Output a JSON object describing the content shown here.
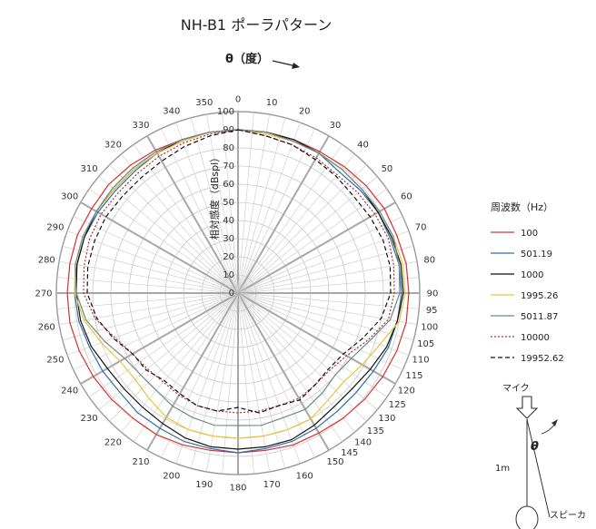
{
  "chart_data": {
    "type": "line",
    "subtype": "polar",
    "title": "NH-B1  ポーラパターン",
    "theta_label": "θ（度）",
    "radial_label": "相対感度（dBspl）",
    "theta_ticks": [
      0,
      10,
      20,
      30,
      40,
      50,
      60,
      70,
      80,
      90,
      95,
      100,
      105,
      110,
      115,
      120,
      125,
      130,
      135,
      140,
      145,
      150,
      160,
      170,
      180,
      190,
      200,
      210,
      220,
      230,
      240,
      250,
      260,
      270,
      280,
      290,
      300,
      310,
      320,
      330,
      340,
      350
    ],
    "r_ticks": [
      0,
      10,
      20,
      30,
      40,
      50,
      60,
      70,
      80,
      90,
      100
    ],
    "rlim": [
      0,
      100
    ],
    "grid": true,
    "legend_title": "周波数（Hz）",
    "legend_position": "right",
    "angles": [
      0,
      10,
      20,
      30,
      40,
      50,
      60,
      70,
      80,
      90,
      100,
      110,
      120,
      130,
      140,
      150,
      160,
      170,
      180,
      190,
      200,
      210,
      220,
      230,
      240,
      250,
      260,
      270,
      280,
      290,
      300,
      310,
      320,
      330,
      340,
      350
    ],
    "series": [
      {
        "name": "100",
        "color": "#d93030",
        "dash": "solid",
        "values": [
          90,
          90,
          90,
          90,
          91,
          92,
          93,
          93,
          94,
          94,
          94,
          93,
          92,
          91,
          90,
          89,
          89,
          88,
          88,
          88,
          89,
          90,
          90,
          91,
          92,
          93,
          94,
          94,
          94,
          94,
          93,
          93,
          92,
          91,
          90,
          90
        ]
      },
      {
        "name": "501.19",
        "color": "#2e6fa8",
        "dash": "solid",
        "values": [
          90,
          90,
          89,
          89,
          87,
          88,
          89,
          89,
          90,
          90,
          89,
          88,
          86,
          85,
          85,
          86,
          87,
          87,
          88,
          87,
          87,
          86,
          86,
          85,
          86,
          87,
          89,
          90,
          90,
          90,
          89,
          88,
          88,
          89,
          90,
          90
        ]
      },
      {
        "name": "1000",
        "color": "#111111",
        "dash": "solid",
        "values": [
          90,
          90,
          90,
          89,
          89,
          89,
          89,
          90,
          91,
          91,
          89,
          87,
          84,
          82,
          82,
          84,
          86,
          86,
          86,
          86,
          85,
          83,
          82,
          82,
          83,
          86,
          88,
          89,
          90,
          90,
          90,
          89,
          89,
          89,
          90,
          90
        ]
      },
      {
        "name": "1995.26",
        "color": "#e8c43a",
        "dash": "solid",
        "values": [
          90,
          89,
          89,
          89,
          89,
          89,
          90,
          91,
          92,
          92,
          90,
          83,
          79,
          76,
          77,
          80,
          80,
          80,
          80,
          80,
          80,
          79,
          76,
          74,
          75,
          80,
          86,
          90,
          91,
          91,
          90,
          89,
          89,
          89,
          89,
          90
        ]
      },
      {
        "name": "5011.87",
        "color": "#6e8a8c",
        "dash": "solid",
        "values": [
          90,
          90,
          89,
          89,
          89,
          89,
          90,
          91,
          90,
          89,
          85,
          77,
          72,
          70,
          72,
          74,
          73,
          74,
          73,
          74,
          73,
          72,
          70,
          70,
          72,
          78,
          85,
          89,
          91,
          91,
          90,
          90,
          90,
          90,
          90,
          90
        ]
      },
      {
        "name": "10000",
        "color": "#b03030",
        "dash": "dotted",
        "values": [
          90,
          88,
          87,
          86,
          85,
          86,
          87,
          88,
          87,
          86,
          84,
          76,
          69,
          66,
          66,
          67,
          66,
          66,
          66,
          66,
          66,
          65,
          64,
          65,
          67,
          72,
          80,
          85,
          86,
          87,
          87,
          86,
          86,
          87,
          88,
          89
        ]
      },
      {
        "name": "19952.62",
        "color": "#111111",
        "dash": "dashed",
        "values": [
          90,
          88,
          87,
          85,
          84,
          83,
          84,
          85,
          85,
          84,
          80,
          73,
          67,
          65,
          66,
          68,
          66,
          67,
          63,
          66,
          66,
          64,
          63,
          66,
          67,
          73,
          79,
          83,
          84,
          84,
          84,
          83,
          83,
          84,
          86,
          88
        ]
      }
    ]
  },
  "diagram": {
    "mic_label": "マイク",
    "theta_symbol": "θ",
    "distance_label": "1m",
    "speaker_label": "スピーカ"
  }
}
